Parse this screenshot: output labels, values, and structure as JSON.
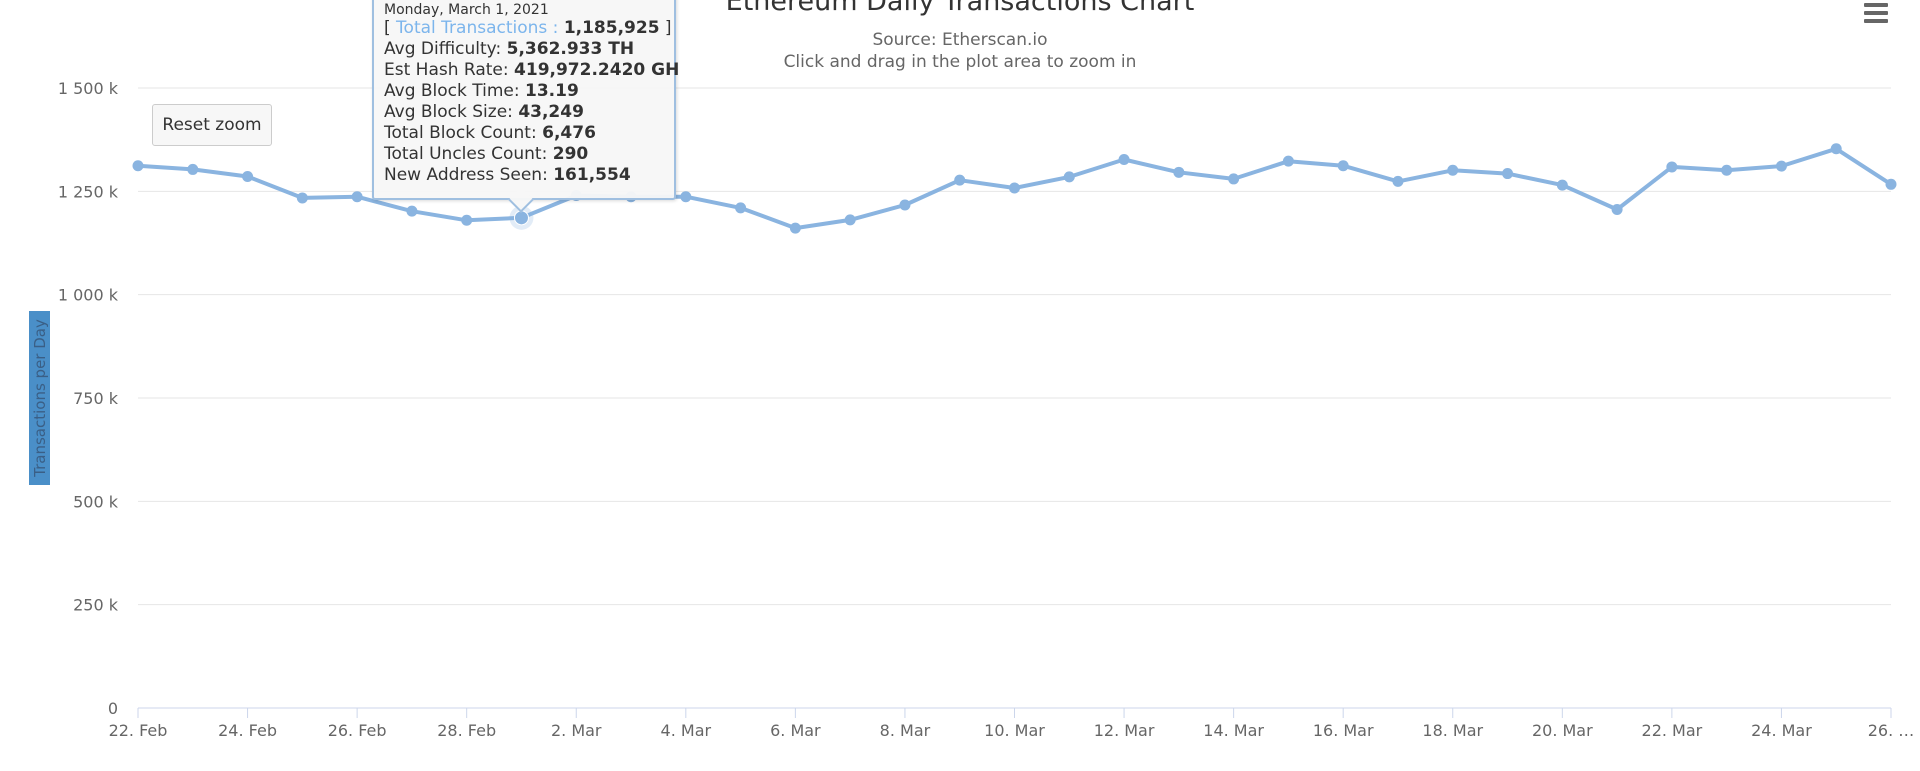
{
  "chart_data": {
    "type": "line",
    "title": "Ethereum Daily Transactions Chart",
    "subtitle": "Source: Etherscan.io",
    "zoom_hint": "Click and drag in the plot area to zoom in",
    "ylabel": "Transactions per Day",
    "ylim": [
      0,
      1500000
    ],
    "y_ticks": [
      {
        "value": 0,
        "label": "0"
      },
      {
        "value": 250000,
        "label": "250 k"
      },
      {
        "value": 500000,
        "label": "500 k"
      },
      {
        "value": 750000,
        "label": "750 k"
      },
      {
        "value": 1000000,
        "label": "1 000 k"
      },
      {
        "value": 1250000,
        "label": "1 250 k"
      },
      {
        "value": 1500000,
        "label": "1 500 k"
      }
    ],
    "x_ticks": [
      "22. Feb",
      "24. Feb",
      "26. Feb",
      "28. Feb",
      "2. Mar",
      "4. Mar",
      "6. Mar",
      "8. Mar",
      "10. Mar",
      "12. Mar",
      "14. Mar",
      "16. Mar",
      "18. Mar",
      "20. Mar",
      "22. Mar",
      "24. Mar",
      "26. …"
    ],
    "grid": true,
    "legend": "none",
    "color": "#8ab4e0",
    "series": [
      {
        "x": [
          "2021-02-22",
          "2021-02-23",
          "2021-02-24",
          "2021-02-25",
          "2021-02-26",
          "2021-02-27",
          "2021-02-28",
          "2021-03-01",
          "2021-03-02",
          "2021-03-03",
          "2021-03-04",
          "2021-03-05",
          "2021-03-06",
          "2021-03-07",
          "2021-03-08",
          "2021-03-09",
          "2021-03-10",
          "2021-03-11",
          "2021-03-12",
          "2021-03-13",
          "2021-03-14",
          "2021-03-15",
          "2021-03-16",
          "2021-03-17",
          "2021-03-18",
          "2021-03-19",
          "2021-03-20",
          "2021-03-21",
          "2021-03-22",
          "2021-03-23",
          "2021-03-24",
          "2021-03-25",
          "2021-03-26"
        ],
        "values": [
          1312000,
          1303000,
          1286000,
          1234000,
          1237000,
          1202000,
          1180000,
          1185925,
          1240000,
          1237000,
          1237000,
          1210000,
          1161000,
          1181000,
          1217000,
          1277000,
          1258000,
          1285000,
          1327000,
          1296000,
          1280000,
          1323000,
          1312000,
          1274000,
          1301000,
          1293000,
          1265000,
          1206000,
          1309000,
          1301000,
          1311000,
          1353000,
          1267000
        ]
      }
    ]
  },
  "menu": {
    "icon": "hamburger-menu-icon"
  },
  "reset_zoom": {
    "label": "Reset zoom"
  },
  "tooltip": {
    "date": "Monday, March 1, 2021",
    "series_name": "Total Transactions",
    "series_value": "1,185,925",
    "highlight_index": 7,
    "rows": [
      {
        "label": "Avg Difficulty",
        "value": "5,362.933 TH"
      },
      {
        "label": "Est Hash Rate",
        "value": "419,972.2420 GH"
      },
      {
        "label": "Avg Block Time",
        "value": "13.19"
      },
      {
        "label": "Avg Block Size",
        "value": "43,249"
      },
      {
        "label": "Total Block Count",
        "value": "6,476"
      },
      {
        "label": "Total Uncles Count",
        "value": "290"
      },
      {
        "label": "New Address Seen",
        "value": "161,554"
      }
    ]
  }
}
